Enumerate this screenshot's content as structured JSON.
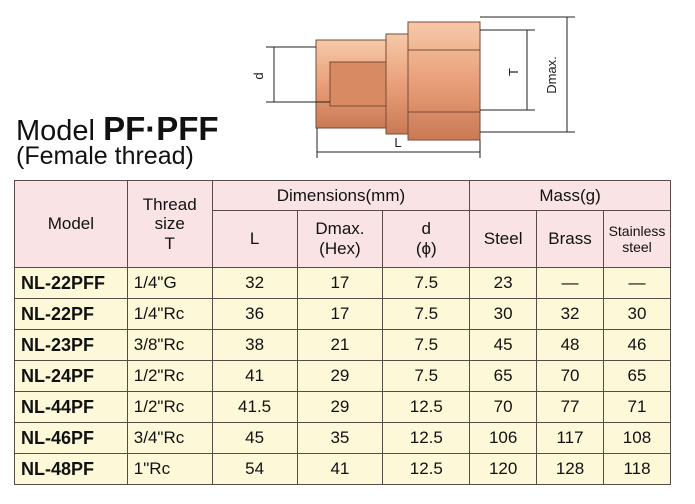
{
  "header": {
    "title": "Model",
    "title_bold": "PF·PFF",
    "subtitle": "(Female thread)"
  },
  "diagram": {
    "labels": {
      "d": "d",
      "T": "T",
      "Dmax": "Dmax.",
      "L": "L"
    }
  },
  "table": {
    "group_headers": {
      "model": "Model",
      "thread": "Thread\nsize\nT",
      "dimensions": "Dimensions(mm)",
      "mass": "Mass(g)"
    },
    "sub_headers": [
      "L",
      "Dmax.\n(Hex)",
      "d\n(ϕ)",
      "Steel",
      "Brass",
      "Stainless\nsteel"
    ],
    "rows": [
      [
        "NL-22PFF",
        "1/4\"G",
        "32",
        "17",
        "7.5",
        "23",
        "—",
        "—"
      ],
      [
        "NL-22PF",
        "1/4\"Rc",
        "36",
        "17",
        "7.5",
        "30",
        "32",
        "30"
      ],
      [
        "NL-23PF",
        "3/8\"Rc",
        "38",
        "21",
        "7.5",
        "45",
        "48",
        "46"
      ],
      [
        "NL-24PF",
        "1/2\"Rc",
        "41",
        "29",
        "7.5",
        "65",
        "70",
        "65"
      ],
      [
        "NL-44PF",
        "1/2\"Rc",
        "41.5",
        "29",
        "12.5",
        "70",
        "77",
        "71"
      ],
      [
        "NL-46PF",
        "3/4\"Rc",
        "45",
        "35",
        "12.5",
        "106",
        "117",
        "108"
      ],
      [
        "NL-48PF",
        "1\"Rc",
        "54",
        "41",
        "12.5",
        "120",
        "128",
        "118"
      ]
    ]
  }
}
